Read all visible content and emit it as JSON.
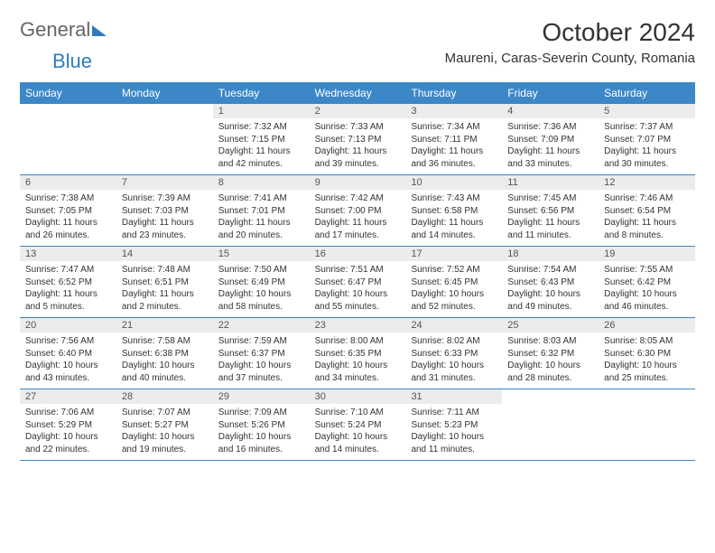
{
  "brand": {
    "word1": "General",
    "word2": "Blue"
  },
  "title": "October 2024",
  "location": "Maureni, Caras-Severin County, Romania",
  "colors": {
    "header_bg": "#3c87c7",
    "header_text": "#ffffff",
    "daynum_bg": "#ececec",
    "rule": "#3c87c7",
    "brand_blue": "#2f7bbf"
  },
  "day_labels": [
    "Sunday",
    "Monday",
    "Tuesday",
    "Wednesday",
    "Thursday",
    "Friday",
    "Saturday"
  ],
  "weeks": [
    [
      {
        "n": "",
        "sr": "",
        "ss": "",
        "dl": ""
      },
      {
        "n": "",
        "sr": "",
        "ss": "",
        "dl": ""
      },
      {
        "n": "1",
        "sr": "Sunrise: 7:32 AM",
        "ss": "Sunset: 7:15 PM",
        "dl": "Daylight: 11 hours and 42 minutes."
      },
      {
        "n": "2",
        "sr": "Sunrise: 7:33 AM",
        "ss": "Sunset: 7:13 PM",
        "dl": "Daylight: 11 hours and 39 minutes."
      },
      {
        "n": "3",
        "sr": "Sunrise: 7:34 AM",
        "ss": "Sunset: 7:11 PM",
        "dl": "Daylight: 11 hours and 36 minutes."
      },
      {
        "n": "4",
        "sr": "Sunrise: 7:36 AM",
        "ss": "Sunset: 7:09 PM",
        "dl": "Daylight: 11 hours and 33 minutes."
      },
      {
        "n": "5",
        "sr": "Sunrise: 7:37 AM",
        "ss": "Sunset: 7:07 PM",
        "dl": "Daylight: 11 hours and 30 minutes."
      }
    ],
    [
      {
        "n": "6",
        "sr": "Sunrise: 7:38 AM",
        "ss": "Sunset: 7:05 PM",
        "dl": "Daylight: 11 hours and 26 minutes."
      },
      {
        "n": "7",
        "sr": "Sunrise: 7:39 AM",
        "ss": "Sunset: 7:03 PM",
        "dl": "Daylight: 11 hours and 23 minutes."
      },
      {
        "n": "8",
        "sr": "Sunrise: 7:41 AM",
        "ss": "Sunset: 7:01 PM",
        "dl": "Daylight: 11 hours and 20 minutes."
      },
      {
        "n": "9",
        "sr": "Sunrise: 7:42 AM",
        "ss": "Sunset: 7:00 PM",
        "dl": "Daylight: 11 hours and 17 minutes."
      },
      {
        "n": "10",
        "sr": "Sunrise: 7:43 AM",
        "ss": "Sunset: 6:58 PM",
        "dl": "Daylight: 11 hours and 14 minutes."
      },
      {
        "n": "11",
        "sr": "Sunrise: 7:45 AM",
        "ss": "Sunset: 6:56 PM",
        "dl": "Daylight: 11 hours and 11 minutes."
      },
      {
        "n": "12",
        "sr": "Sunrise: 7:46 AM",
        "ss": "Sunset: 6:54 PM",
        "dl": "Daylight: 11 hours and 8 minutes."
      }
    ],
    [
      {
        "n": "13",
        "sr": "Sunrise: 7:47 AM",
        "ss": "Sunset: 6:52 PM",
        "dl": "Daylight: 11 hours and 5 minutes."
      },
      {
        "n": "14",
        "sr": "Sunrise: 7:48 AM",
        "ss": "Sunset: 6:51 PM",
        "dl": "Daylight: 11 hours and 2 minutes."
      },
      {
        "n": "15",
        "sr": "Sunrise: 7:50 AM",
        "ss": "Sunset: 6:49 PM",
        "dl": "Daylight: 10 hours and 58 minutes."
      },
      {
        "n": "16",
        "sr": "Sunrise: 7:51 AM",
        "ss": "Sunset: 6:47 PM",
        "dl": "Daylight: 10 hours and 55 minutes."
      },
      {
        "n": "17",
        "sr": "Sunrise: 7:52 AM",
        "ss": "Sunset: 6:45 PM",
        "dl": "Daylight: 10 hours and 52 minutes."
      },
      {
        "n": "18",
        "sr": "Sunrise: 7:54 AM",
        "ss": "Sunset: 6:43 PM",
        "dl": "Daylight: 10 hours and 49 minutes."
      },
      {
        "n": "19",
        "sr": "Sunrise: 7:55 AM",
        "ss": "Sunset: 6:42 PM",
        "dl": "Daylight: 10 hours and 46 minutes."
      }
    ],
    [
      {
        "n": "20",
        "sr": "Sunrise: 7:56 AM",
        "ss": "Sunset: 6:40 PM",
        "dl": "Daylight: 10 hours and 43 minutes."
      },
      {
        "n": "21",
        "sr": "Sunrise: 7:58 AM",
        "ss": "Sunset: 6:38 PM",
        "dl": "Daylight: 10 hours and 40 minutes."
      },
      {
        "n": "22",
        "sr": "Sunrise: 7:59 AM",
        "ss": "Sunset: 6:37 PM",
        "dl": "Daylight: 10 hours and 37 minutes."
      },
      {
        "n": "23",
        "sr": "Sunrise: 8:00 AM",
        "ss": "Sunset: 6:35 PM",
        "dl": "Daylight: 10 hours and 34 minutes."
      },
      {
        "n": "24",
        "sr": "Sunrise: 8:02 AM",
        "ss": "Sunset: 6:33 PM",
        "dl": "Daylight: 10 hours and 31 minutes."
      },
      {
        "n": "25",
        "sr": "Sunrise: 8:03 AM",
        "ss": "Sunset: 6:32 PM",
        "dl": "Daylight: 10 hours and 28 minutes."
      },
      {
        "n": "26",
        "sr": "Sunrise: 8:05 AM",
        "ss": "Sunset: 6:30 PM",
        "dl": "Daylight: 10 hours and 25 minutes."
      }
    ],
    [
      {
        "n": "27",
        "sr": "Sunrise: 7:06 AM",
        "ss": "Sunset: 5:29 PM",
        "dl": "Daylight: 10 hours and 22 minutes."
      },
      {
        "n": "28",
        "sr": "Sunrise: 7:07 AM",
        "ss": "Sunset: 5:27 PM",
        "dl": "Daylight: 10 hours and 19 minutes."
      },
      {
        "n": "29",
        "sr": "Sunrise: 7:09 AM",
        "ss": "Sunset: 5:26 PM",
        "dl": "Daylight: 10 hours and 16 minutes."
      },
      {
        "n": "30",
        "sr": "Sunrise: 7:10 AM",
        "ss": "Sunset: 5:24 PM",
        "dl": "Daylight: 10 hours and 14 minutes."
      },
      {
        "n": "31",
        "sr": "Sunrise: 7:11 AM",
        "ss": "Sunset: 5:23 PM",
        "dl": "Daylight: 10 hours and 11 minutes."
      },
      {
        "n": "",
        "sr": "",
        "ss": "",
        "dl": ""
      },
      {
        "n": "",
        "sr": "",
        "ss": "",
        "dl": ""
      }
    ]
  ]
}
